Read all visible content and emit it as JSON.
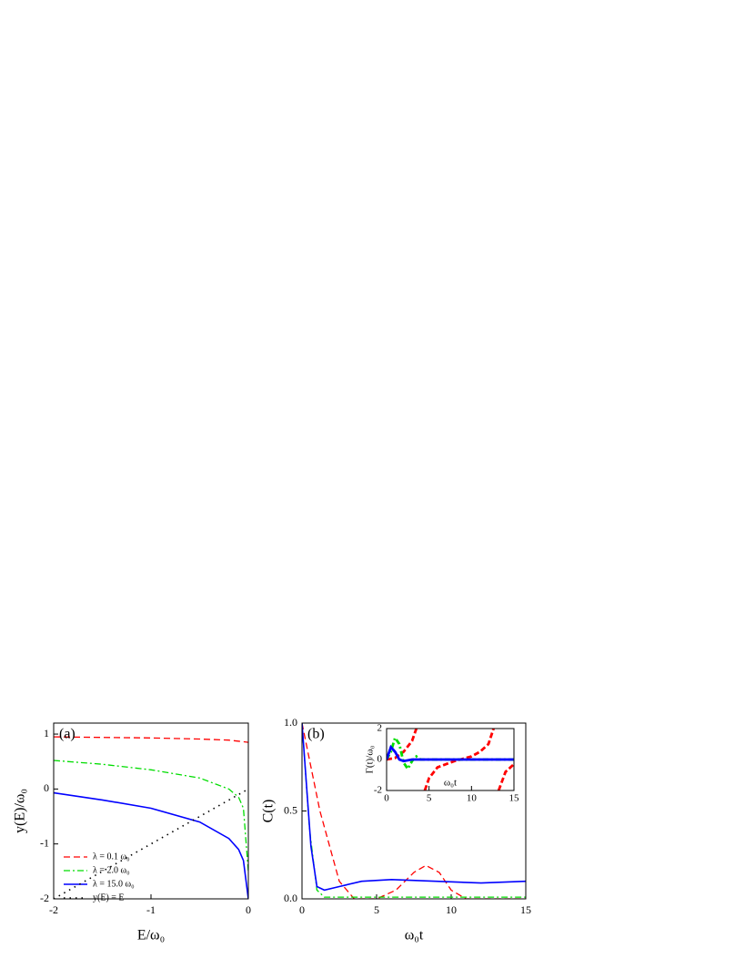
{
  "chart_data": [
    {
      "type": "line",
      "panel_label": "(a)",
      "xlabel": "E/ω₀",
      "ylabel": "y(E)/ω₀",
      "xlim": [
        -2,
        0
      ],
      "xticks": [
        -2,
        -1,
        0
      ],
      "ylim": [
        -2,
        1.2
      ],
      "yticks": [
        -2,
        -1,
        0,
        1
      ],
      "legend": "lower left",
      "series": [
        {
          "name": "λ = 0.1 ω₀",
          "color": "#ff0000",
          "style": "dashed",
          "x": [
            -2,
            -1.5,
            -1,
            -0.5,
            -0.2,
            0
          ],
          "values": [
            0.95,
            0.94,
            0.93,
            0.91,
            0.89,
            0.85
          ]
        },
        {
          "name": "λ = 2.0 ω₀",
          "color": "#00dd00",
          "style": "dashdot",
          "x": [
            -2,
            -1.5,
            -1,
            -0.5,
            -0.2,
            -0.1,
            -0.05,
            0
          ],
          "values": [
            0.52,
            0.45,
            0.35,
            0.2,
            0.0,
            -0.15,
            -0.35,
            -1.5
          ]
        },
        {
          "name": "λ = 15.0 ω₀",
          "color": "#0000ff",
          "style": "solid",
          "x": [
            -2,
            -1.5,
            -1,
            -0.5,
            -0.2,
            -0.1,
            -0.05,
            0
          ],
          "values": [
            -0.07,
            -0.2,
            -0.35,
            -0.6,
            -0.9,
            -1.1,
            -1.3,
            -2
          ]
        },
        {
          "name": "y(E) = E",
          "color": "#000000",
          "style": "dotted",
          "x": [
            -2,
            0
          ],
          "values": [
            -2,
            0
          ]
        }
      ]
    },
    {
      "type": "line",
      "panel_label": "(b)",
      "xlabel": "ω₀t",
      "ylabel": "C(t)",
      "xlim": [
        0,
        15
      ],
      "xticks": [
        0,
        5,
        10,
        15
      ],
      "ylim": [
        0,
        1
      ],
      "yticks": [
        {
          "value": 0,
          "label": "0.0"
        },
        {
          "value": 0.5,
          "label": "0.5"
        },
        {
          "value": 1,
          "label": "1.0"
        }
      ],
      "series": [
        {
          "color": "#ff0000",
          "style": "dashed",
          "x": [
            0,
            1.2,
            2.5,
            3.5,
            5,
            6.3,
            7.5,
            8.3,
            9.2,
            10,
            11,
            15
          ],
          "values": [
            1,
            0.5,
            0.1,
            0,
            0,
            0.05,
            0.15,
            0.19,
            0.15,
            0.05,
            0,
            0
          ]
        },
        {
          "color": "#00dd00",
          "style": "dashdot",
          "x": [
            0,
            0.5,
            1,
            1.5,
            15
          ],
          "values": [
            1,
            0.4,
            0.05,
            0.01,
            0.01
          ]
        },
        {
          "color": "#0000ff",
          "style": "solid",
          "x": [
            0,
            0.6,
            1,
            1.5,
            2.5,
            4,
            6,
            9,
            12,
            15
          ],
          "values": [
            1,
            0.3,
            0.07,
            0.05,
            0.07,
            0.1,
            0.11,
            0.1,
            0.09,
            0.1
          ]
        }
      ]
    },
    {
      "type": "line",
      "xlabel": "ω₀t",
      "ylabel": "Γ(t)/ω₀",
      "xlim": [
        0,
        15
      ],
      "xticks": [
        0,
        5,
        10,
        15
      ],
      "ylim": [
        -2,
        2
      ],
      "yticks": [
        -2,
        0,
        2
      ],
      "series": [
        {
          "color": "#ff0000",
          "style": "thickdash",
          "x": [
            0,
            1,
            2,
            3,
            3.5,
            4,
            4.5,
            5,
            6,
            8,
            10,
            11,
            12,
            12.6,
            12.9,
            13.2,
            14,
            15
          ],
          "values": [
            0,
            0.1,
            0.5,
            1.2,
            2,
            null,
            -2,
            -1.2,
            -0.5,
            -0.1,
            0.2,
            0.5,
            1.0,
            2,
            null,
            -2,
            -0.8,
            -0.3
          ]
        },
        {
          "color": "#00dd00",
          "style": "thickdashdot",
          "x": [
            0,
            0.5,
            1,
            1.5,
            2,
            2.5,
            3,
            3.5,
            4,
            15
          ],
          "values": [
            0,
            0.5,
            1.4,
            1,
            -0.2,
            -0.6,
            -0.1,
            0.2,
            0,
            0
          ]
        },
        {
          "color": "#0000ff",
          "style": "thick",
          "x": [
            0,
            0.5,
            1,
            1.5,
            2,
            3,
            15
          ],
          "values": [
            0,
            0.8,
            0.5,
            0,
            -0.1,
            0,
            0
          ]
        }
      ]
    }
  ]
}
